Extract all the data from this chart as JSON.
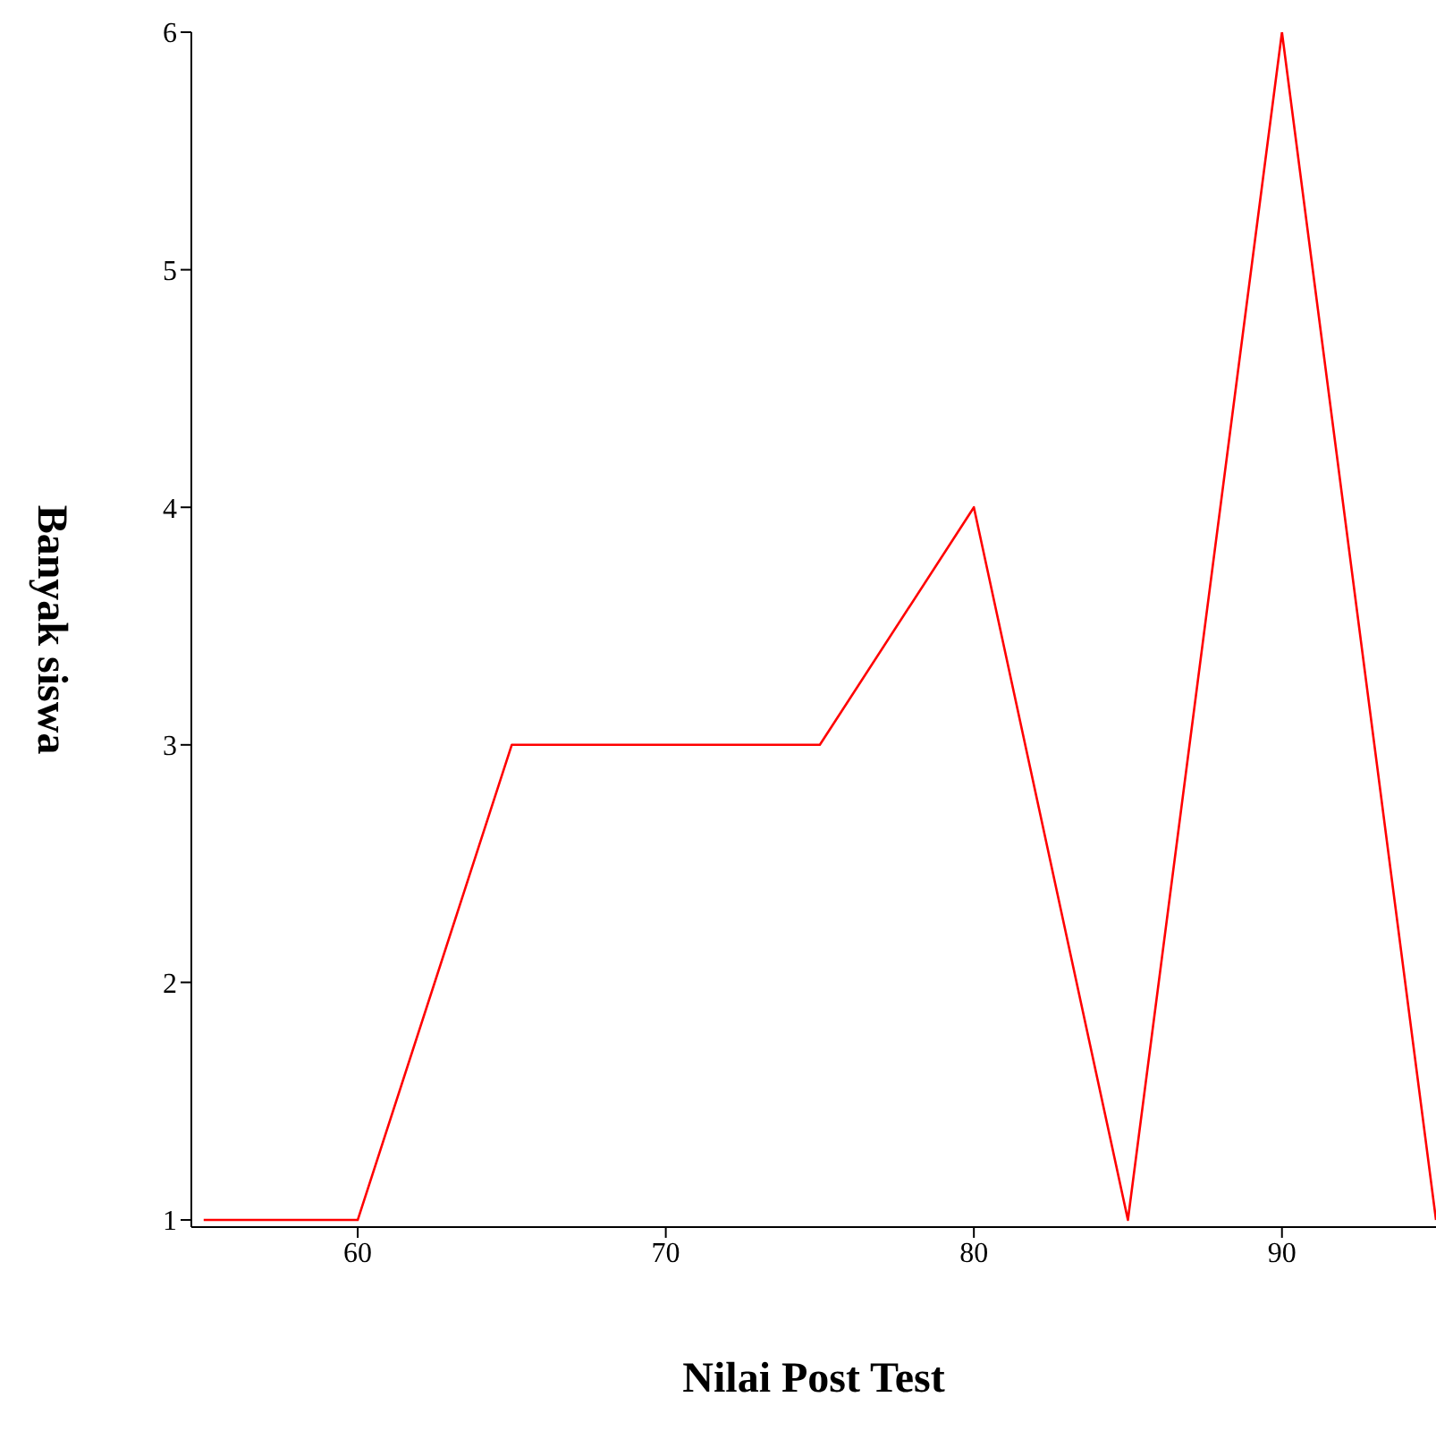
{
  "chart_data": {
    "type": "line",
    "xlabel": "Nilai Post Test",
    "ylabel": "Banyak siswa",
    "x": [
      55,
      60,
      65,
      70,
      75,
      80,
      85,
      90,
      95
    ],
    "series": [
      {
        "color": "#ff0000",
        "values": [
          1,
          1,
          3,
          3,
          3,
          4,
          1,
          6,
          1
        ]
      }
    ],
    "xlim": [
      54.6,
      95
    ],
    "xticks": [
      60,
      70,
      80,
      90
    ],
    "ylim": [
      0.97,
      6
    ],
    "yticks": [
      1,
      2,
      3,
      4,
      5,
      6
    ],
    "grid": false,
    "legend": false,
    "marker": "none",
    "line_style": "solid"
  }
}
